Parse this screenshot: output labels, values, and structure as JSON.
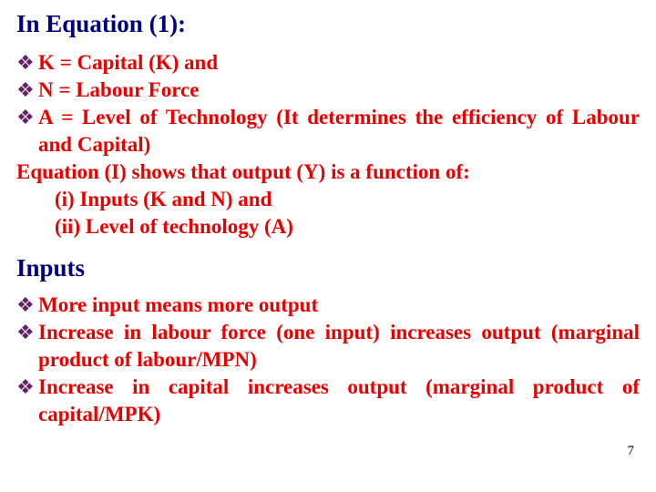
{
  "colors": {
    "heading": "#000080",
    "body": "#eb0000",
    "bullet": "#6a1d6a",
    "background": "#ffffff",
    "page_number": "#000000"
  },
  "typography": {
    "heading_fontsize_pt": 20,
    "body_fontsize_pt": 17,
    "font_family": "Times New Roman",
    "font_weight": "bold"
  },
  "bullet_glyph": "❖",
  "heading1": "In Equation (1):",
  "section1": {
    "bullets": [
      "K = Capital (K) and",
      "N = Labour Force",
      "A = Level of Technology (It determines the efficiency of Labour and Capital)"
    ],
    "plain": "Equation (I) shows that output (Y) is a function of:",
    "sub": [
      "(i) Inputs (K and N) and",
      "(ii) Level of technology (A)"
    ]
  },
  "heading2": "Inputs",
  "section2": {
    "bullets": [
      "More input means more output",
      "Increase in labour force (one input) increases output (marginal product of labour/MPN)",
      "Increase in capital increases output (marginal product of capital/MPK)"
    ]
  },
  "page_number": "7"
}
